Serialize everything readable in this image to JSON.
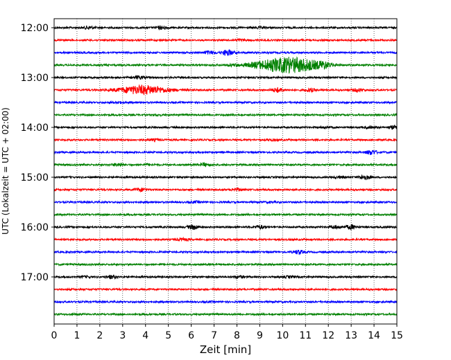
{
  "chart_data": {
    "type": "line",
    "title": "",
    "xlabel": "Zeit  [min]",
    "ylabel": "UTC (Lokalzeit = UTC + 02:00)",
    "xlim": [
      0,
      15
    ],
    "x_ticks": [
      0,
      1,
      2,
      3,
      4,
      5,
      6,
      7,
      8,
      9,
      10,
      11,
      12,
      13,
      14,
      15
    ],
    "x_tick_labels": [
      "0",
      "1",
      "2",
      "3",
      "4",
      "5",
      "6",
      "7",
      "8",
      "9",
      "10",
      "11",
      "12",
      "13",
      "14",
      "15"
    ],
    "y_tick_labels": [
      "12:00",
      "13:00",
      "14:00",
      "15:00",
      "16:00",
      "17:00"
    ],
    "y_tick_rows": [
      0,
      4,
      8,
      12,
      16,
      20
    ],
    "grid": "vertical-dotted",
    "colors": [
      "#000000",
      "#ff0000",
      "#0000ff",
      "#008000"
    ],
    "traces": [
      {
        "start": "12:00",
        "color": "#000000",
        "bursts": [
          [
            1.5,
            3
          ],
          [
            4.7,
            3
          ],
          [
            9.0,
            2
          ]
        ]
      },
      {
        "start": "12:15",
        "color": "#ff0000",
        "bursts": [
          [
            8.2,
            2
          ]
        ]
      },
      {
        "start": "12:30",
        "color": "#0000ff",
        "bursts": [
          [
            6.8,
            3
          ],
          [
            7.6,
            5
          ]
        ]
      },
      {
        "start": "12:45",
        "color": "#008000",
        "bursts": [
          [
            7.8,
            2
          ],
          [
            9.6,
            7
          ],
          [
            10.7,
            9
          ],
          [
            11.8,
            4
          ]
        ]
      },
      {
        "start": "13:00",
        "color": "#000000",
        "bursts": [
          [
            3.7,
            3
          ]
        ]
      },
      {
        "start": "13:15",
        "color": "#ff0000",
        "bursts": [
          [
            3.9,
            7
          ],
          [
            9.8,
            4
          ],
          [
            11.2,
            3
          ],
          [
            13.3,
            3
          ]
        ]
      },
      {
        "start": "13:30",
        "color": "#0000ff",
        "bursts": [
          [
            2.8,
            2
          ]
        ]
      },
      {
        "start": "13:45",
        "color": "#008000",
        "bursts": [
          [
            4.5,
            1.5
          ]
        ]
      },
      {
        "start": "14:00",
        "color": "#000000",
        "bursts": [
          [
            11.9,
            2
          ],
          [
            13.8,
            2
          ],
          [
            14.9,
            3
          ]
        ]
      },
      {
        "start": "14:15",
        "color": "#ff0000",
        "bursts": [
          [
            4.4,
            2
          ],
          [
            9.5,
            2
          ]
        ]
      },
      {
        "start": "14:30",
        "color": "#0000ff",
        "bursts": [
          [
            13.9,
            4
          ]
        ]
      },
      {
        "start": "14:45",
        "color": "#008000",
        "bursts": [
          [
            2.8,
            3
          ],
          [
            4.1,
            2
          ],
          [
            6.6,
            3
          ]
        ]
      },
      {
        "start": "15:00",
        "color": "#000000",
        "bursts": [
          [
            12.5,
            2
          ],
          [
            13.6,
            4
          ]
        ]
      },
      {
        "start": "15:15",
        "color": "#ff0000",
        "bursts": [
          [
            3.8,
            3
          ],
          [
            8.0,
            2.5
          ]
        ]
      },
      {
        "start": "15:30",
        "color": "#0000ff",
        "bursts": [
          [
            6.2,
            2
          ],
          [
            9.5,
            1.5
          ]
        ]
      },
      {
        "start": "15:45",
        "color": "#008000",
        "bursts": []
      },
      {
        "start": "16:00",
        "color": "#000000",
        "bursts": [
          [
            6.1,
            4
          ],
          [
            9.0,
            3
          ],
          [
            12.3,
            3
          ],
          [
            13.0,
            4
          ]
        ]
      },
      {
        "start": "16:15",
        "color": "#ff0000",
        "bursts": [
          [
            5.6,
            2.5
          ]
        ]
      },
      {
        "start": "16:30",
        "color": "#0000ff",
        "bursts": [
          [
            10.7,
            3.5
          ]
        ]
      },
      {
        "start": "16:45",
        "color": "#008000",
        "bursts": []
      },
      {
        "start": "17:00",
        "color": "#000000",
        "bursts": [
          [
            1.4,
            2
          ],
          [
            2.5,
            3
          ],
          [
            8.1,
            2.5
          ],
          [
            10.3,
            2
          ]
        ]
      },
      {
        "start": "17:15",
        "color": "#ff0000",
        "bursts": []
      },
      {
        "start": "17:30",
        "color": "#0000ff",
        "bursts": [
          [
            6.8,
            1.5
          ]
        ]
      },
      {
        "start": "17:45",
        "color": "#008000",
        "bursts": [
          [
            1.0,
            1.5
          ]
        ]
      }
    ]
  }
}
